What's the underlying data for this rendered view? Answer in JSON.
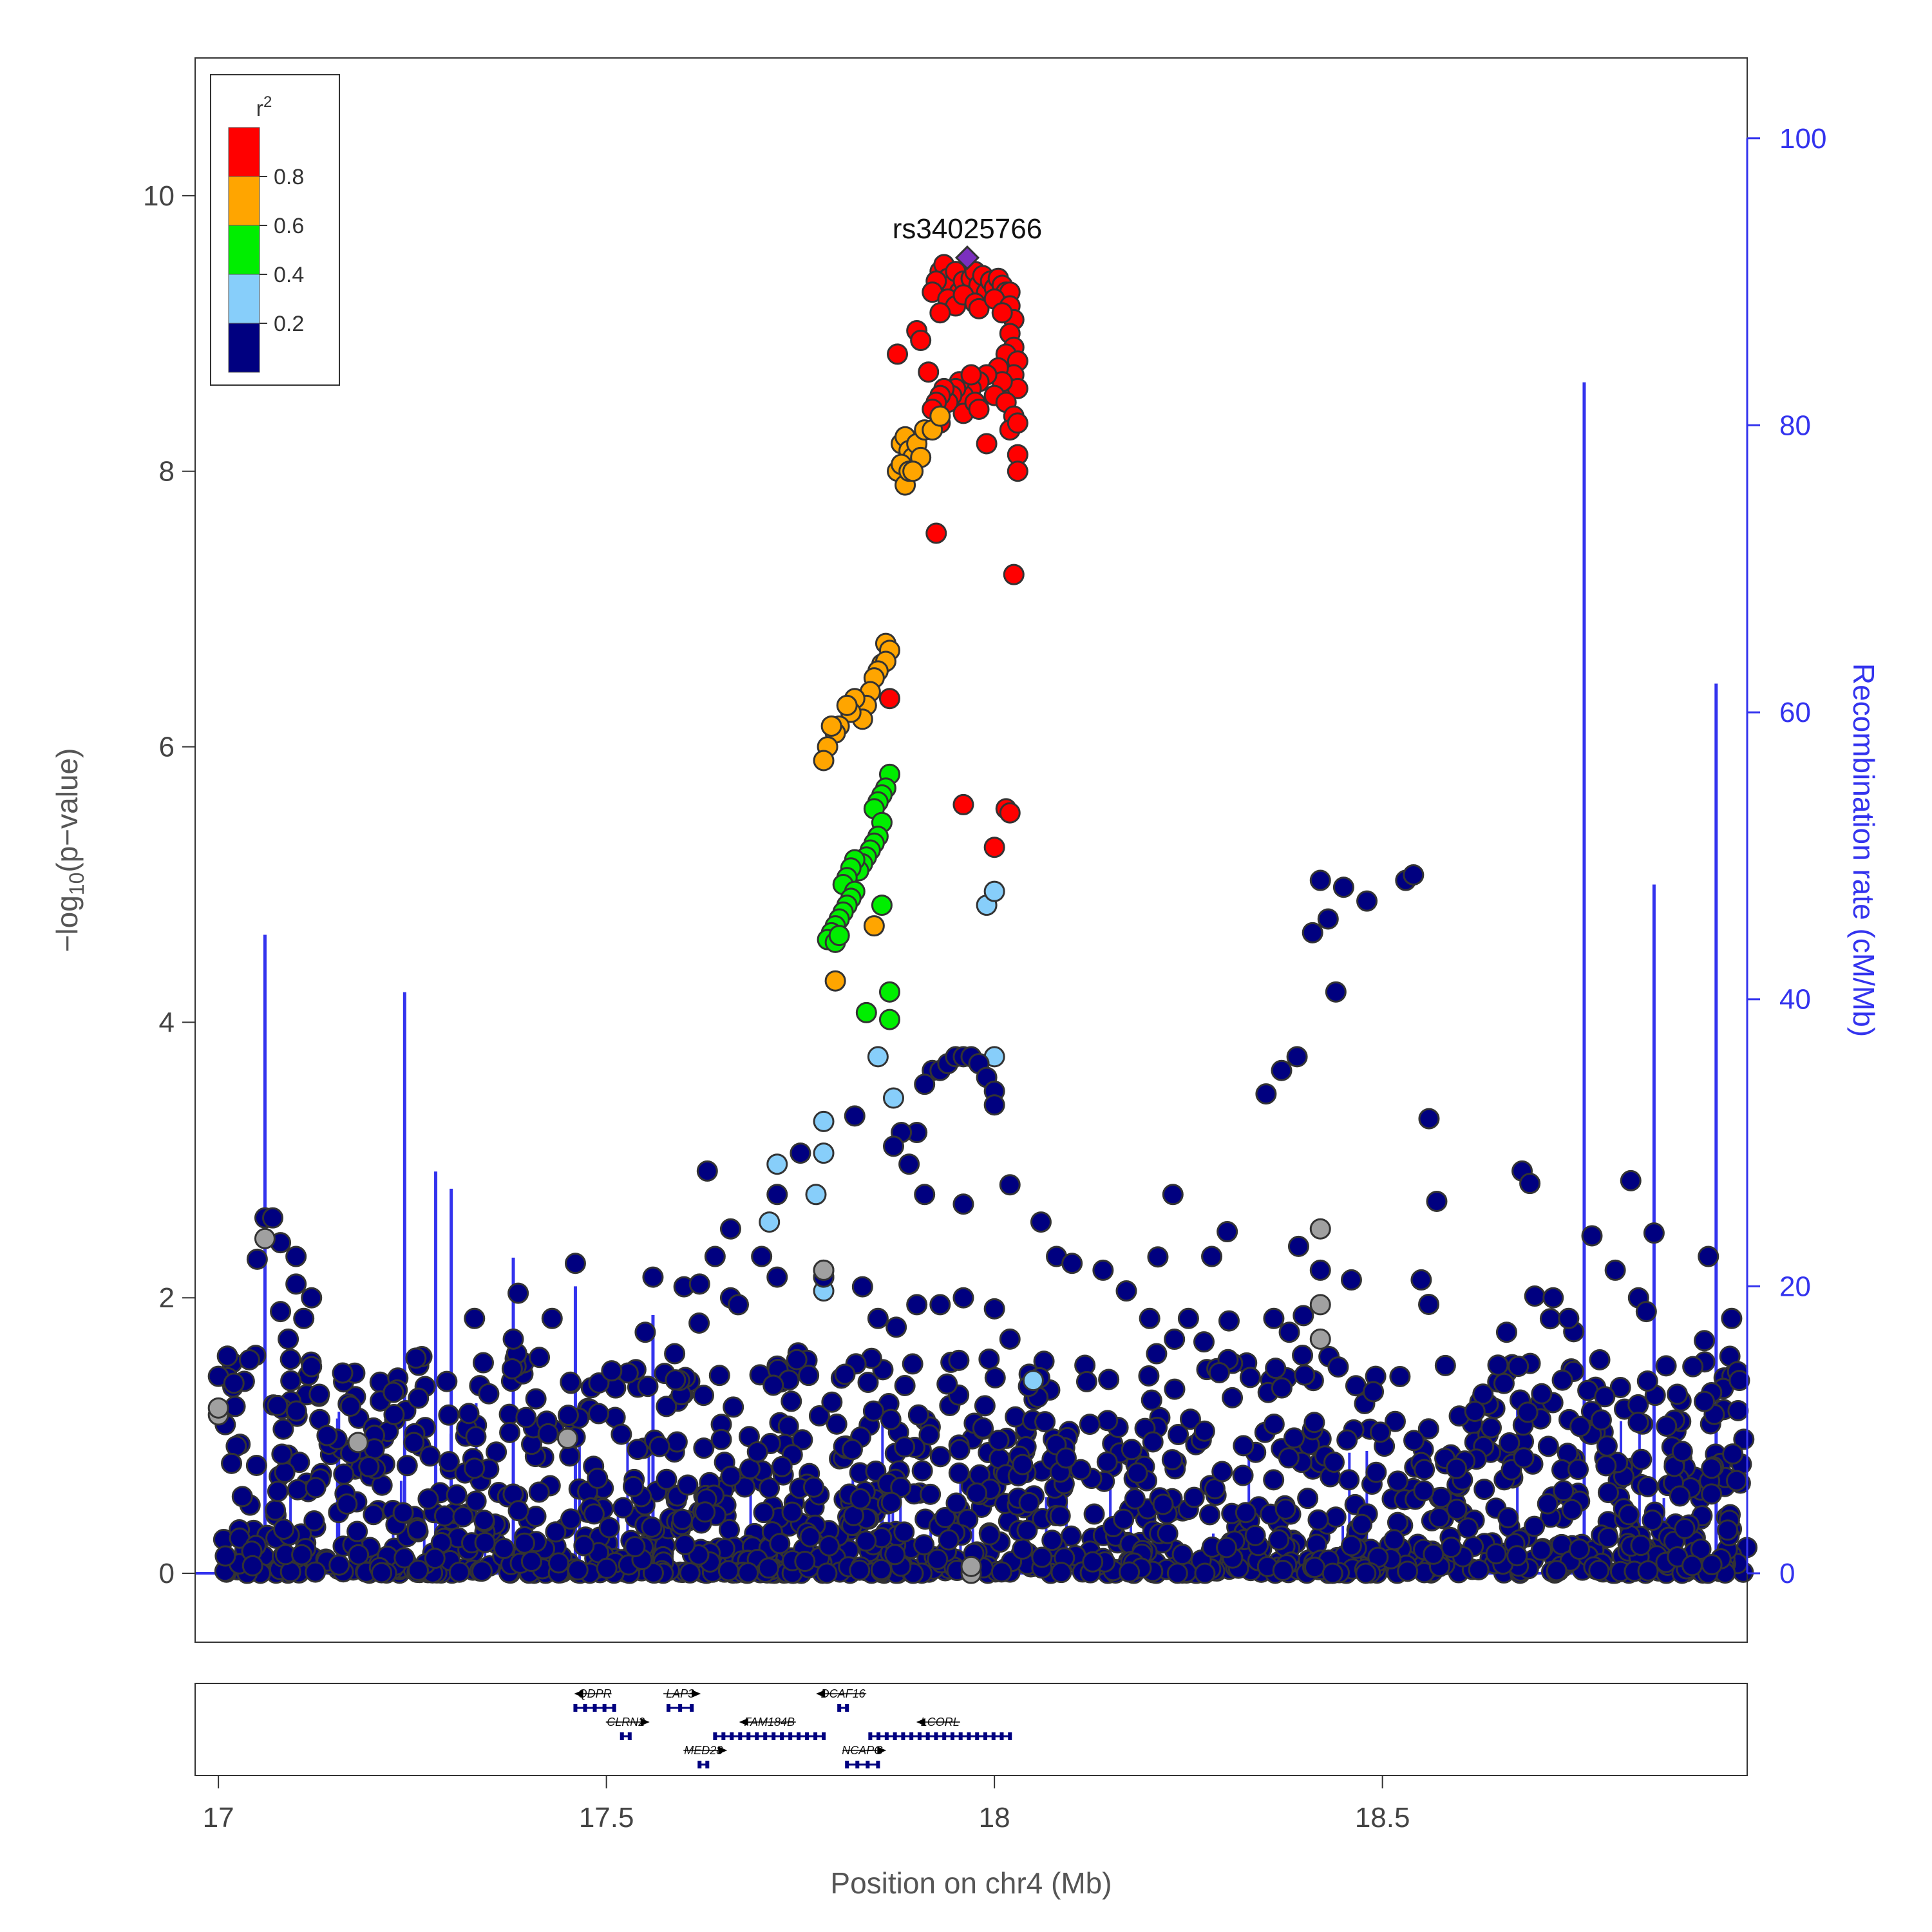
{
  "chart_data": {
    "type": "scatter",
    "title": "",
    "xlabel": "Position on chr4 (Mb)",
    "ylabel": "-log10(p-value)",
    "ylabel_right": "Recombination rate (cM/Mb)",
    "xlim": [
      16.97,
      18.97
    ],
    "ylim": [
      -0.5,
      11
    ],
    "ylim_right": [
      -4.8,
      105.6
    ],
    "x_ticks": [
      17,
      17.5,
      18,
      18.5
    ],
    "x_tick_labels": [
      "17",
      "17.5",
      "18",
      "18.5"
    ],
    "y_ticks": [
      0,
      2,
      4,
      6,
      8,
      10
    ],
    "y_tick_labels": [
      "0",
      "2",
      "4",
      "6",
      "8",
      "10"
    ],
    "y_right_ticks": [
      0,
      20,
      40,
      60,
      80,
      100
    ],
    "y_right_tick_labels": [
      "0",
      "20",
      "40",
      "60",
      "80",
      "100"
    ],
    "lead_snp": {
      "label": "rs34025766",
      "x": 17.965,
      "y": 9.55,
      "color": "#7b2fbe"
    },
    "legend": {
      "title": "r",
      "title_sup": "2",
      "labels": [
        "0.8",
        "0.6",
        "0.4",
        "0.2"
      ],
      "colors": [
        "#ff0000",
        "#ffa500",
        "#00ee00",
        "#87cefa",
        "#000080"
      ]
    },
    "colors": {
      "r2_08_1": "#ff0000",
      "r2_06_08": "#ffa500",
      "r2_04_06": "#00ee00",
      "r2_02_04": "#87cefa",
      "r2_0_02": "#000080",
      "no_ld": "#a0a0a0",
      "recombination": "#3333ee"
    },
    "series": [
      {
        "r2": "0.8-1.0",
        "color": "#ff0000",
        "points": [
          [
            17.93,
            9.45
          ],
          [
            17.935,
            9.5
          ],
          [
            17.94,
            9.4
          ],
          [
            17.945,
            9.35
          ],
          [
            17.95,
            9.45
          ],
          [
            17.955,
            9.3
          ],
          [
            17.96,
            9.38
          ],
          [
            17.97,
            9.4
          ],
          [
            17.975,
            9.45
          ],
          [
            17.98,
            9.35
          ],
          [
            17.985,
            9.42
          ],
          [
            17.99,
            9.3
          ],
          [
            17.995,
            9.38
          ],
          [
            18.0,
            9.33
          ],
          [
            18.005,
            9.4
          ],
          [
            18.01,
            9.35
          ],
          [
            18.015,
            9.3
          ],
          [
            18.02,
            9.3
          ],
          [
            17.925,
            9.38
          ],
          [
            17.92,
            9.3
          ],
          [
            17.94,
            9.25
          ],
          [
            17.95,
            9.2
          ],
          [
            17.96,
            9.28
          ],
          [
            17.975,
            9.22
          ],
          [
            17.98,
            9.18
          ],
          [
            18.0,
            9.25
          ],
          [
            18.02,
            9.2
          ],
          [
            18.025,
            9.1
          ],
          [
            17.93,
            9.15
          ],
          [
            18.01,
            9.15
          ],
          [
            17.9,
            9.02
          ],
          [
            17.905,
            8.95
          ],
          [
            17.875,
            8.85
          ],
          [
            18.02,
            9.0
          ],
          [
            18.025,
            8.9
          ],
          [
            18.015,
            8.85
          ],
          [
            18.03,
            8.8
          ],
          [
            18.025,
            8.7
          ],
          [
            18.02,
            8.6
          ],
          [
            18.03,
            8.6
          ],
          [
            18.005,
            8.75
          ],
          [
            18.01,
            8.65
          ],
          [
            17.99,
            8.7
          ],
          [
            17.98,
            8.65
          ],
          [
            17.97,
            8.6
          ],
          [
            17.96,
            8.55
          ],
          [
            17.955,
            8.65
          ],
          [
            17.95,
            8.6
          ],
          [
            17.945,
            8.55
          ],
          [
            17.94,
            8.5
          ],
          [
            17.935,
            8.6
          ],
          [
            17.93,
            8.55
          ],
          [
            17.925,
            8.5
          ],
          [
            17.92,
            8.45
          ],
          [
            17.915,
            8.72
          ],
          [
            17.96,
            8.42
          ],
          [
            17.975,
            8.5
          ],
          [
            18.0,
            8.55
          ],
          [
            18.015,
            8.5
          ],
          [
            18.025,
            8.4
          ],
          [
            18.02,
            8.3
          ],
          [
            18.03,
            8.35
          ],
          [
            17.98,
            8.45
          ],
          [
            17.97,
            8.7
          ],
          [
            17.99,
            8.2
          ],
          [
            17.93,
            8.35
          ],
          [
            18.03,
            8.12
          ],
          [
            18.03,
            8.0
          ],
          [
            17.925,
            7.55
          ],
          [
            18.025,
            7.25
          ],
          [
            17.96,
            5.58
          ],
          [
            18.015,
            5.55
          ],
          [
            18.02,
            5.52
          ],
          [
            18.0,
            5.27
          ],
          [
            17.865,
            6.35
          ]
        ]
      },
      {
        "r2": "0.6-0.8",
        "color": "#ffa500",
        "points": [
          [
            17.88,
            8.2
          ],
          [
            17.885,
            8.25
          ],
          [
            17.89,
            8.15
          ],
          [
            17.895,
            8.1
          ],
          [
            17.875,
            8.0
          ],
          [
            17.88,
            8.05
          ],
          [
            17.885,
            7.9
          ],
          [
            17.89,
            8.0
          ],
          [
            17.9,
            8.2
          ],
          [
            17.905,
            8.1
          ],
          [
            17.91,
            8.3
          ],
          [
            17.92,
            8.3
          ],
          [
            17.93,
            8.4
          ],
          [
            17.895,
            8.0
          ],
          [
            17.86,
            6.75
          ],
          [
            17.865,
            6.7
          ],
          [
            17.855,
            6.6
          ],
          [
            17.86,
            6.62
          ],
          [
            17.85,
            6.55
          ],
          [
            17.845,
            6.5
          ],
          [
            17.84,
            6.4
          ],
          [
            17.835,
            6.3
          ],
          [
            17.83,
            6.2
          ],
          [
            17.82,
            6.35
          ],
          [
            17.815,
            6.25
          ],
          [
            17.81,
            6.3
          ],
          [
            17.8,
            6.15
          ],
          [
            17.795,
            6.1
          ],
          [
            17.79,
            6.15
          ],
          [
            17.785,
            6.0
          ],
          [
            17.78,
            5.9
          ],
          [
            17.845,
            4.7
          ],
          [
            17.795,
            4.3
          ]
        ]
      },
      {
        "r2": "0.4-0.6",
        "color": "#00ee00",
        "points": [
          [
            17.865,
            5.8
          ],
          [
            17.86,
            5.7
          ],
          [
            17.855,
            5.65
          ],
          [
            17.85,
            5.6
          ],
          [
            17.845,
            5.55
          ],
          [
            17.855,
            5.45
          ],
          [
            17.85,
            5.35
          ],
          [
            17.845,
            5.3
          ],
          [
            17.84,
            5.25
          ],
          [
            17.835,
            5.2
          ],
          [
            17.83,
            5.15
          ],
          [
            17.825,
            5.1
          ],
          [
            17.82,
            5.18
          ],
          [
            17.815,
            5.12
          ],
          [
            17.81,
            5.05
          ],
          [
            17.805,
            5.0
          ],
          [
            17.82,
            4.95
          ],
          [
            17.815,
            4.9
          ],
          [
            17.81,
            4.85
          ],
          [
            17.805,
            4.8
          ],
          [
            17.8,
            4.75
          ],
          [
            17.795,
            4.7
          ],
          [
            17.79,
            4.65
          ],
          [
            17.785,
            4.6
          ],
          [
            17.795,
            4.58
          ],
          [
            17.8,
            4.63
          ],
          [
            17.855,
            4.85
          ],
          [
            17.865,
            4.22
          ],
          [
            17.865,
            4.02
          ],
          [
            17.835,
            4.07
          ]
        ]
      },
      {
        "r2": "0.2-0.4",
        "color": "#87cefa",
        "points": [
          [
            17.99,
            4.85
          ],
          [
            18.0,
            4.95
          ],
          [
            18.0,
            3.75
          ],
          [
            17.85,
            3.75
          ],
          [
            17.87,
            3.45
          ],
          [
            17.78,
            3.28
          ],
          [
            17.78,
            3.05
          ],
          [
            17.72,
            2.97
          ],
          [
            17.77,
            2.75
          ],
          [
            17.71,
            2.55
          ],
          [
            17.78,
            2.2
          ],
          [
            17.78,
            2.15
          ],
          [
            17.78,
            2.05
          ],
          [
            18.05,
            1.4
          ]
        ]
      },
      {
        "r2": "0.0-0.2",
        "color": "#000080",
        "points": [
          [
            17.92,
            3.65
          ],
          [
            17.93,
            3.65
          ],
          [
            17.94,
            3.7
          ],
          [
            17.95,
            3.75
          ],
          [
            17.96,
            3.75
          ],
          [
            17.97,
            3.75
          ],
          [
            17.98,
            3.7
          ],
          [
            17.99,
            3.6
          ],
          [
            18.0,
            3.5
          ],
          [
            18.0,
            3.4
          ],
          [
            17.91,
            3.55
          ],
          [
            17.9,
            3.2
          ],
          [
            17.88,
            3.2
          ],
          [
            17.87,
            3.1
          ],
          [
            17.89,
            2.97
          ],
          [
            17.91,
            2.75
          ],
          [
            17.96,
            2.68
          ],
          [
            18.02,
            2.82
          ],
          [
            18.06,
            2.55
          ],
          [
            17.82,
            3.32
          ],
          [
            17.75,
            3.05
          ],
          [
            17.72,
            2.75
          ],
          [
            17.66,
            2.5
          ],
          [
            17.63,
            2.92
          ],
          [
            17.64,
            2.3
          ],
          [
            17.7,
            2.3
          ],
          [
            18.08,
            2.3
          ],
          [
            18.1,
            2.25
          ],
          [
            18.23,
            2.75
          ],
          [
            18.3,
            2.48
          ],
          [
            18.28,
            2.3
          ],
          [
            18.35,
            3.48
          ],
          [
            18.37,
            3.65
          ],
          [
            18.39,
            3.75
          ],
          [
            18.41,
            4.65
          ],
          [
            18.42,
            5.03
          ],
          [
            18.43,
            4.75
          ],
          [
            18.44,
            4.22
          ],
          [
            18.45,
            4.98
          ],
          [
            18.48,
            4.88
          ],
          [
            18.53,
            5.03
          ],
          [
            18.54,
            5.07
          ],
          [
            18.56,
            3.3
          ],
          [
            18.57,
            2.7
          ],
          [
            18.55,
            2.13
          ],
          [
            18.46,
            2.13
          ],
          [
            18.42,
            2.2
          ],
          [
            18.68,
            2.92
          ],
          [
            18.69,
            2.83
          ],
          [
            18.77,
            2.45
          ],
          [
            18.82,
            2.85
          ],
          [
            18.85,
            2.47
          ],
          [
            18.92,
            2.3
          ],
          [
            17.06,
            2.58
          ],
          [
            17.07,
            2.58
          ],
          [
            17.08,
            2.4
          ],
          [
            17.1,
            2.3
          ],
          [
            17.1,
            2.1
          ],
          [
            17.12,
            2.0
          ],
          [
            17.11,
            1.85
          ],
          [
            17.09,
            1.7
          ],
          [
            17.12,
            1.5
          ],
          [
            17.13,
            1.3
          ],
          [
            17.14,
            1.0
          ],
          [
            17.05,
            2.28
          ],
          [
            17.04,
            1.55
          ],
          [
            17.0,
            1.43
          ],
          [
            17.02,
            1.38
          ],
          [
            17.08,
            1.9
          ],
          [
            17.33,
            1.85
          ],
          [
            17.38,
            1.7
          ],
          [
            17.43,
            1.85
          ],
          [
            17.46,
            2.25
          ],
          [
            17.55,
            1.75
          ],
          [
            17.56,
            2.15
          ],
          [
            17.6,
            2.08
          ],
          [
            17.62,
            2.1
          ],
          [
            17.66,
            2.0
          ],
          [
            17.67,
            1.95
          ],
          [
            17.72,
            2.15
          ],
          [
            17.78,
            2.15
          ],
          [
            17.83,
            2.08
          ],
          [
            17.85,
            1.85
          ],
          [
            17.9,
            1.95
          ],
          [
            17.93,
            1.95
          ],
          [
            17.96,
            2.0
          ],
          [
            18.0,
            1.92
          ],
          [
            18.02,
            1.7
          ],
          [
            18.14,
            2.2
          ],
          [
            18.17,
            2.05
          ],
          [
            18.2,
            1.85
          ],
          [
            18.25,
            1.85
          ],
          [
            18.27,
            1.68
          ],
          [
            18.36,
            1.85
          ],
          [
            18.38,
            1.75
          ],
          [
            18.66,
            1.75
          ],
          [
            18.72,
            2.0
          ],
          [
            18.74,
            1.85
          ],
          [
            18.8,
            2.2
          ],
          [
            18.83,
            2.0
          ],
          [
            18.84,
            1.9
          ],
          [
            18.78,
            1.55
          ],
          [
            18.88,
            1.3
          ],
          [
            18.95,
            1.85
          ],
          [
            18.96,
            1.4
          ],
          [
            18.9,
            1.5
          ]
        ]
      },
      {
        "r2": "NA",
        "color": "#a0a0a0",
        "points": [
          [
            17.06,
            2.43
          ],
          [
            17.0,
            1.15
          ],
          [
            17.0,
            1.2
          ],
          [
            17.18,
            0.95
          ],
          [
            17.45,
            0.98
          ],
          [
            17.97,
            0.0
          ],
          [
            17.97,
            0.05
          ],
          [
            18.42,
            2.5
          ],
          [
            18.42,
            1.95
          ],
          [
            18.42,
            1.7
          ],
          [
            17.78,
            2.2
          ]
        ]
      }
    ],
    "background_points_note": "",
    "recombination_spikes": [
      [
        17.06,
        44.5
      ],
      [
        17.24,
        40.5
      ],
      [
        17.28,
        28.0
      ],
      [
        17.3,
        26.8
      ],
      [
        17.38,
        22.0
      ],
      [
        17.46,
        20.0
      ],
      [
        17.56,
        18.0
      ],
      [
        18.76,
        83.0
      ],
      [
        18.85,
        48.0
      ],
      [
        18.93,
        62.0
      ]
    ],
    "genes": [
      {
        "name": "QDPR",
        "start": 17.46,
        "end": 17.51,
        "row": 0,
        "strand": "-"
      },
      {
        "name": "LAP3",
        "start": 17.58,
        "end": 17.61,
        "row": 0,
        "strand": "+"
      },
      {
        "name": "DCAF16",
        "start": 17.8,
        "end": 17.81,
        "row": 0,
        "strand": "-"
      },
      {
        "name": "CLRN2",
        "start": 17.52,
        "end": 17.53,
        "row": 1,
        "strand": "+"
      },
      {
        "name": "FAM184B",
        "start": 17.64,
        "end": 17.78,
        "row": 1,
        "strand": "-"
      },
      {
        "name": "LCORL",
        "start": 17.84,
        "end": 18.02,
        "row": 1,
        "strand": "-"
      },
      {
        "name": "MED28",
        "start": 17.62,
        "end": 17.63,
        "row": 2,
        "strand": "+"
      },
      {
        "name": "NCAPG",
        "start": 17.81,
        "end": 17.85,
        "row": 2,
        "strand": "+"
      }
    ]
  }
}
